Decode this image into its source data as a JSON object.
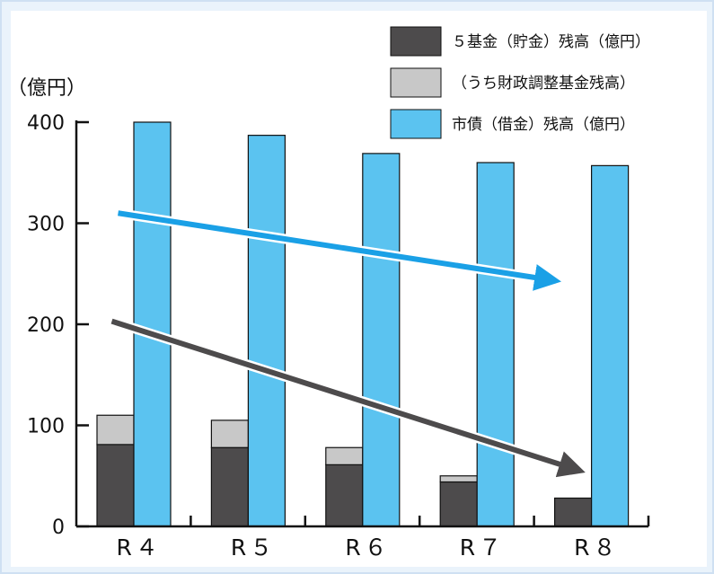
{
  "chart_data": {
    "type": "bar",
    "ylabel": "（億円）",
    "ylim": [
      0,
      400
    ],
    "yticks": [
      0,
      100,
      200,
      300,
      400
    ],
    "categories": [
      "R４",
      "R５",
      "R６",
      "R７",
      "R８"
    ],
    "series": [
      {
        "name": "５基金（貯金）残高（億円）",
        "values": [
          81,
          78,
          61,
          44,
          28
        ],
        "color": "#4d4b4c"
      },
      {
        "name": "（うち財政調整基金残高）",
        "values": [
          29,
          27,
          17,
          6,
          0
        ],
        "color": "#c8c8c8"
      },
      {
        "name": "市債（借金）残高（億円）",
        "values": [
          400,
          387,
          369,
          360,
          357
        ],
        "color": "#5bc3f0"
      }
    ],
    "trend_arrows": [
      {
        "series": "市債（借金）残高（億円）",
        "from_category": "R４",
        "to_category": "R８",
        "color": "#1aa0e6"
      },
      {
        "series": "５基金（貯金）残高（億円）",
        "from_category": "R４",
        "to_category": "R８",
        "color": "#4d4b4c"
      }
    ],
    "legend_position": "top-right",
    "grid": false
  }
}
